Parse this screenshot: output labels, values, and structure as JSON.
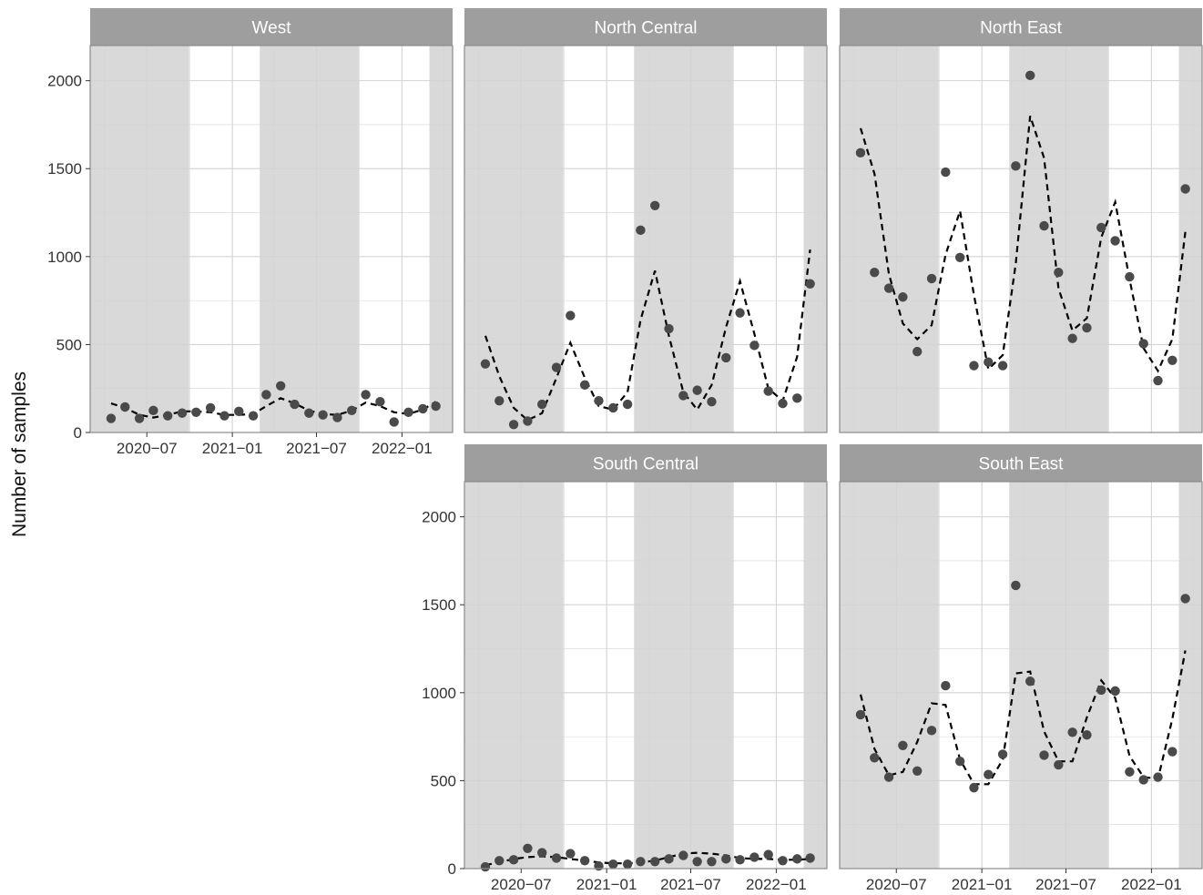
{
  "colors": {
    "strip": "#9e9e9e",
    "shade": "#d9d9d9",
    "grid": "#d3d3d3",
    "frame": "#8c8c8c",
    "point": "#4a4a4a",
    "trend": "#000000"
  },
  "chart_data": {
    "type": "scatter",
    "ylabel": "Number of samples",
    "xlabel": "",
    "ylim": [
      0,
      2200
    ],
    "y_ticks": [
      0,
      500,
      1000,
      1500,
      2000
    ],
    "x_ticks": [
      "2020-07",
      "2021-01",
      "2021-07",
      "2022-01"
    ],
    "x_tick_labels": [
      "2020−07",
      "2021−01",
      "2021−07",
      "2022−01"
    ],
    "x_range": [
      "2020-03-01",
      "2022-04-20"
    ],
    "shaded_periods": [
      [
        "2020-03-01",
        "2020-09-30"
      ],
      [
        "2021-03-01",
        "2021-09-30"
      ],
      [
        "2022-03-01",
        "2022-04-20"
      ]
    ],
    "months": [
      "2020-04",
      "2020-05",
      "2020-06",
      "2020-07",
      "2020-08",
      "2020-09",
      "2020-10",
      "2020-11",
      "2020-12",
      "2021-01",
      "2021-02",
      "2021-03",
      "2021-04",
      "2021-05",
      "2021-06",
      "2021-07",
      "2021-08",
      "2021-09",
      "2021-10",
      "2021-11",
      "2021-12",
      "2022-01",
      "2022-02",
      "2022-03"
    ],
    "panels": [
      {
        "name": "West",
        "observed": [
          80,
          145,
          80,
          125,
          95,
          110,
          115,
          140,
          95,
          120,
          95,
          215,
          265,
          160,
          110,
          100,
          85,
          125,
          215,
          175,
          60,
          115,
          135,
          150
        ],
        "trend": [
          165,
          140,
          100,
          85,
          100,
          120,
          120,
          115,
          100,
          100,
          105,
          150,
          195,
          165,
          125,
          105,
          100,
          125,
          170,
          150,
          115,
          105,
          130,
          175
        ]
      },
      {
        "name": "North Central",
        "observed": [
          390,
          180,
          45,
          65,
          160,
          370,
          665,
          270,
          180,
          140,
          160,
          1150,
          1290,
          590,
          210,
          240,
          175,
          425,
          680,
          495,
          235,
          165,
          195,
          845
        ],
        "trend": [
          550,
          320,
          140,
          70,
          110,
          310,
          510,
          310,
          150,
          130,
          230,
          640,
          920,
          550,
          230,
          130,
          270,
          600,
          860,
          560,
          250,
          180,
          430,
          1040
        ]
      },
      {
        "name": "North East",
        "observed": [
          1590,
          910,
          820,
          770,
          460,
          875,
          1480,
          995,
          380,
          400,
          380,
          1515,
          2030,
          1175,
          910,
          535,
          595,
          1165,
          1090,
          885,
          505,
          295,
          410,
          1385
        ],
        "trend": [
          1730,
          1470,
          900,
          620,
          530,
          610,
          1010,
          1260,
          780,
          360,
          440,
          960,
          1800,
          1560,
          820,
          580,
          650,
          1110,
          1310,
          870,
          480,
          350,
          530,
          1140
        ]
      },
      {
        "name": "South Central",
        "observed": [
          10,
          45,
          50,
          115,
          90,
          60,
          85,
          45,
          15,
          25,
          25,
          40,
          40,
          55,
          75,
          40,
          40,
          55,
          50,
          65,
          80,
          45,
          55,
          60
        ],
        "trend": [
          20,
          35,
          55,
          65,
          70,
          65,
          55,
          45,
          35,
          30,
          30,
          35,
          45,
          65,
          85,
          90,
          85,
          75,
          60,
          55,
          55,
          50,
          50,
          55
        ]
      },
      {
        "name": "South East",
        "observed": [
          875,
          630,
          520,
          700,
          555,
          785,
          1040,
          610,
          460,
          535,
          650,
          1610,
          1065,
          645,
          590,
          775,
          760,
          1015,
          1010,
          550,
          505,
          520,
          665,
          1535
        ],
        "trend": [
          990,
          680,
          530,
          550,
          720,
          940,
          930,
          620,
          480,
          480,
          620,
          1110,
          1120,
          780,
          610,
          610,
          860,
          1070,
          970,
          640,
          520,
          510,
          850,
          1240
        ]
      }
    ]
  }
}
